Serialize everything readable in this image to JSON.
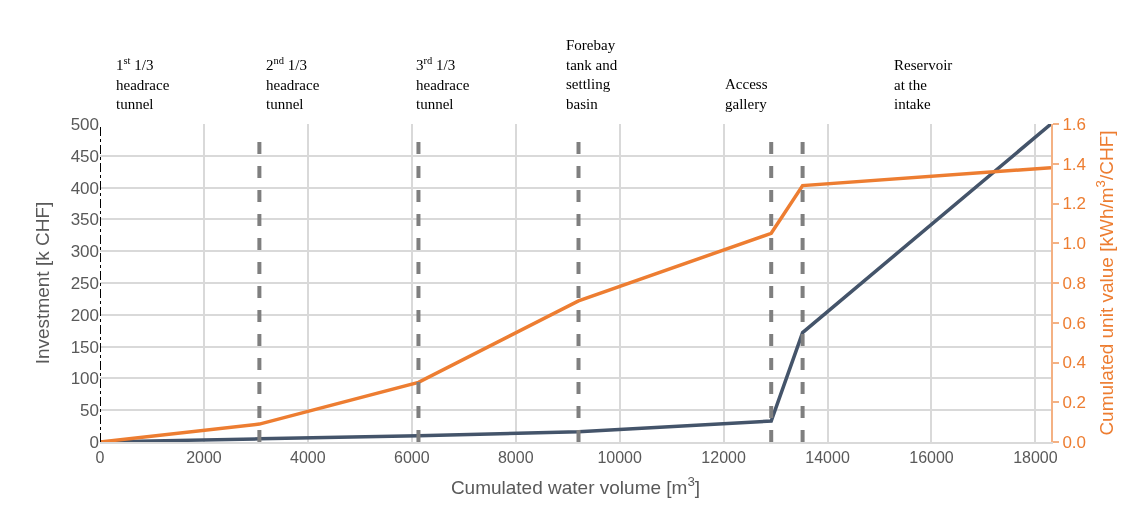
{
  "chart_data": {
    "type": "line",
    "xlabel": "Cumulated water volume [m$^{3}$]",
    "ylabel": "Investment [k CHF]",
    "y2label": "Cumulated unit value [kWh/m$^{3}$/CHF]",
    "series": [
      {
        "color": "#44546a",
        "x": [
          0,
          3067,
          6128,
          9208,
          12916,
          13520,
          18300
        ],
        "values": [
          0,
          5,
          10,
          16,
          33,
          172,
          500
        ]
      },
      {
        "color": "#ed7d31",
        "axis": "y2",
        "x": [
          0,
          3067,
          6128,
          9208,
          12916,
          13520,
          18300
        ],
        "values": [
          0,
          0.09,
          0.3,
          0.71,
          1.05,
          1.29,
          1.38
        ]
      }
    ],
    "xlim": [
      0,
      18300
    ],
    "xticks": [
      0,
      2000,
      4000,
      6000,
      8000,
      10000,
      12000,
      14000,
      16000,
      18000
    ],
    "ylim": [
      0,
      500
    ],
    "yticks": [
      0,
      50,
      100,
      150,
      200,
      250,
      300,
      350,
      400,
      450,
      500
    ],
    "y2lim": [
      0,
      1.6
    ],
    "y2ticks": [
      {
        "value": 0,
        "label": "0.0"
      },
      {
        "value": 0.2,
        "label": "0.2"
      },
      {
        "value": 0.4,
        "label": "0.4"
      },
      {
        "value": 0.6,
        "label": "0.6"
      },
      {
        "value": 0.8,
        "label": "0.8"
      },
      {
        "value": 1,
        "label": "1.0"
      },
      {
        "value": 1.2,
        "label": "1.2"
      },
      {
        "value": 1.4,
        "label": "1.4"
      },
      {
        "value": 1.6,
        "label": "1.6"
      }
    ],
    "ref_lines": [
      {
        "axis": "x",
        "value": 0,
        "color": "#000000",
        "line_style": "dashdot"
      },
      {
        "axis": "x",
        "value": 3067,
        "color": "#7f7f7f",
        "line_style": "dashed"
      },
      {
        "axis": "x",
        "value": 6128,
        "color": "#7f7f7f",
        "line_style": "dashed"
      },
      {
        "axis": "x",
        "value": 9208,
        "color": "#7f7f7f",
        "line_style": "dashed"
      },
      {
        "axis": "x",
        "value": 12916,
        "color": "#7f7f7f",
        "line_style": "dashed"
      },
      {
        "axis": "x",
        "value": 13520,
        "color": "#7f7f7f",
        "line_style": "dashed"
      }
    ],
    "annotations": [
      "1$^{st}$ 1/3\nheadrace\ntunnel",
      "2$^{nd}$ 1/3\nheadrace\ntunnel",
      "3$^{rd}$ 1/3\nheadrace\ntunnel",
      "Forebay\ntank and\nsettling\nbasin",
      "Access\ngallery",
      "Reservoir\nat the\nintake"
    ],
    "grid": true,
    "line_style": "solid",
    "marker": "none"
  }
}
